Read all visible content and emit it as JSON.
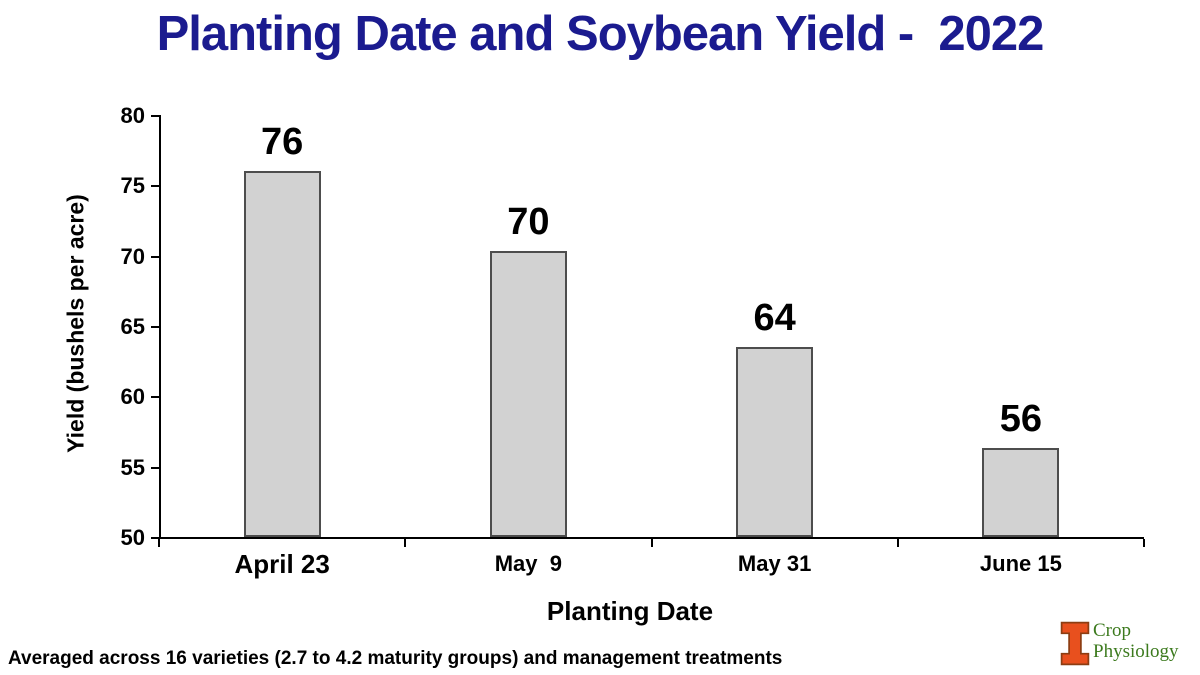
{
  "title": "Planting Date and Soybean Yield -  2022",
  "chart_data": {
    "type": "bar",
    "title": "Planting Date and Soybean Yield -  2022",
    "categories": [
      "April 23",
      "May  9",
      "May 31",
      "June 15"
    ],
    "values": [
      76,
      70,
      64,
      56
    ],
    "bar_heights_precise": [
      76.0,
      70.3,
      63.5,
      56.3
    ],
    "xlabel": "Planting Date",
    "ylabel": "Yield (bushels per acre)",
    "ylim": [
      50,
      80
    ],
    "yticks": [
      50,
      55,
      60,
      65,
      70,
      75,
      80
    ],
    "grid": false,
    "legend": "none",
    "bar_fill_color": "#d2d2d2",
    "bar_border_color": "#4d4d4d"
  },
  "footnote": "Averaged across 16 varieties (2.7 to 4.2 maturity groups) and management treatments",
  "logo": {
    "name": "illinois-block-i",
    "line1": "Crop",
    "line2": "Physiology",
    "block_color": "#e8501e",
    "block_outline_color": "#8c3d12",
    "text_color": "#3c7a1e"
  },
  "colors": {
    "title_color": "#1b1b8f",
    "axis_color": "#000000",
    "text_color": "#111111"
  }
}
